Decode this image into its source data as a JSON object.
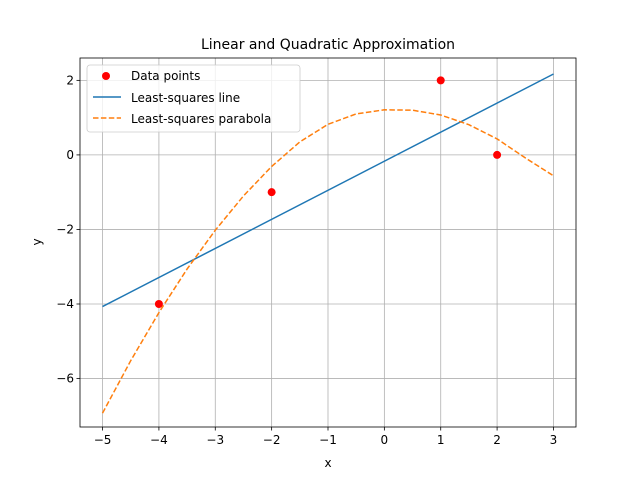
{
  "chart_data": {
    "type": "line",
    "title": "Linear and Quadratic Approximation",
    "xlabel": "x",
    "ylabel": "y",
    "xlim": [
      -5.4,
      3.4
    ],
    "ylim": [
      -7.3,
      2.6
    ],
    "grid": true,
    "legend_position": "top-left",
    "xticks": [
      -5,
      -4,
      -3,
      -2,
      -1,
      0,
      1,
      2,
      3
    ],
    "xtick_labels": [
      "−5",
      "−4",
      "−3",
      "−2",
      "−1",
      "0",
      "1",
      "2",
      "3"
    ],
    "yticks": [
      -6,
      -4,
      -2,
      0,
      2
    ],
    "ytick_labels": [
      "−6",
      "−4",
      "−2",
      "0",
      "2"
    ],
    "series": [
      {
        "name": "Data points",
        "kind": "scatter",
        "color": "#ff0000",
        "x": [
          -4,
          -2,
          1,
          2
        ],
        "y": [
          -4,
          -1,
          2,
          0
        ]
      },
      {
        "name": "Least-squares line",
        "kind": "line",
        "color": "#1f77b4",
        "style": "solid",
        "x": [
          -5,
          3
        ],
        "y": [
          -4.07,
          2.17
        ]
      },
      {
        "name": "Least-squares parabola",
        "kind": "line",
        "color": "#ff7f0e",
        "style": "dashed",
        "x": [
          -5,
          -4.5,
          -4,
          -3.5,
          -3,
          -2.5,
          -2,
          -1.5,
          -1,
          -0.5,
          0,
          0.5,
          1,
          1.5,
          2,
          2.5,
          3
        ],
        "y": [
          -6.93,
          -5.52,
          -4.23,
          -3.06,
          -2.02,
          -1.1,
          -0.31,
          0.35,
          0.82,
          1.1,
          1.21,
          1.2,
          1.07,
          0.81,
          0.43,
          -0.08,
          -0.56
        ]
      }
    ]
  }
}
